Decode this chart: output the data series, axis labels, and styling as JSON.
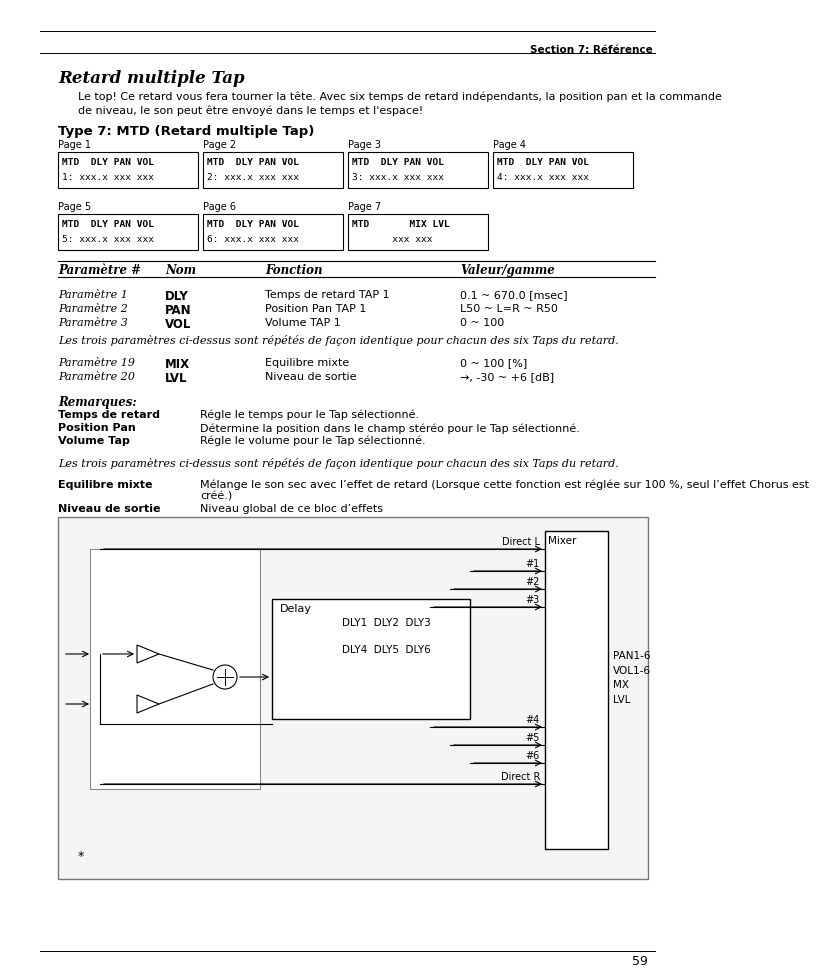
{
  "bg_color": "#ffffff",
  "section_label": "Section 7: Référence",
  "page_number": "59",
  "title": "Retard multiple Tap",
  "intro_line1": "Le top! Ce retard vous fera tourner la tête. Avec six temps de retard indépendants, la position pan et la commande",
  "intro_line2": "de niveau, le son peut être envoyé dans le temps et l'espace!",
  "type_heading": "Type 7: MTD (Retard multiple Tap)",
  "pages_row1": [
    {
      "label": "Page 1",
      "line1": "MTD  DLY PAN VOL",
      "line2": "1: xxx.x xxx xxx"
    },
    {
      "label": "Page 2",
      "line1": "MTD  DLY PAN VOL",
      "line2": "2: xxx.x xxx xxx"
    },
    {
      "label": "Page 3",
      "line1": "MTD  DLY PAN VOL",
      "line2": "3: xxx.x xxx xxx"
    },
    {
      "label": "Page 4",
      "line1": "MTD  DLY PAN VOL",
      "line2": "4: xxx.x xxx xxx"
    }
  ],
  "pages_row2": [
    {
      "label": "Page 5",
      "line1": "MTD  DLY PAN VOL",
      "line2": "5: xxx.x xxx xxx"
    },
    {
      "label": "Page 6",
      "line1": "MTD  DLY PAN VOL",
      "line2": "6: xxx.x xxx xxx"
    },
    {
      "label": "Page 7",
      "line1": "MTD       MIX LVL",
      "line2": "       xxx xxx"
    }
  ],
  "table_headers": [
    "Paramètre #",
    "Nom",
    "Fonction",
    "Valeur/gamme"
  ],
  "params": [
    {
      "num": "Paramètre 1",
      "nom": "DLY",
      "fonction": "Temps de retard TAP 1",
      "valeur": "0.1 ~ 670.0 [msec]"
    },
    {
      "num": "Paramètre 2",
      "nom": "PAN",
      "fonction": "Position Pan TAP 1",
      "valeur": "L50 ~ L=R ~ R50"
    },
    {
      "num": "Paramètre 3",
      "nom": "VOL",
      "fonction": "Volume TAP 1",
      "valeur": "0 ~ 100"
    }
  ],
  "repeat_text": "Les trois paramètres ci-dessus sont répétés de façon identique pour chacun des six Taps du retard.",
  "params2": [
    {
      "num": "Paramètre 19",
      "nom": "MIX",
      "fonction": "Equilibre mixte",
      "valeur": "0 ~ 100 [%]"
    },
    {
      "num": "Paramètre 20",
      "nom": "LVL",
      "fonction": "Niveau de sortie",
      "valeur": "→, -30 ~ +6 [dB]"
    }
  ],
  "remarks_title": "Remarques:",
  "remarks": [
    {
      "term": "Temps de retard",
      "desc": "Régle le temps pour le Tap sélectionné."
    },
    {
      "term": "Position Pan",
      "desc": "Détermine la position dans le champ stéréo pour le Tap sélectionné."
    },
    {
      "term": "Volume Tap",
      "desc": "Régle le volume pour le Tap sélectionné."
    }
  ],
  "repeat_text2": "Les trois paramètres ci-dessus sont répétés de façon identique pour chacun des six Taps du retard.",
  "note_mix_label": "Equilibre mixte",
  "note_mix": "Mélange le son sec avec l’effet de retard (Lorsque cette fonction est réglée sur 100 %, seul l’effet Chorus est",
  "note_mix2": "créé.)",
  "note_lvl_label": "Niveau de sortie",
  "note_lvl": "Niveau global de ce bloc d’effets"
}
